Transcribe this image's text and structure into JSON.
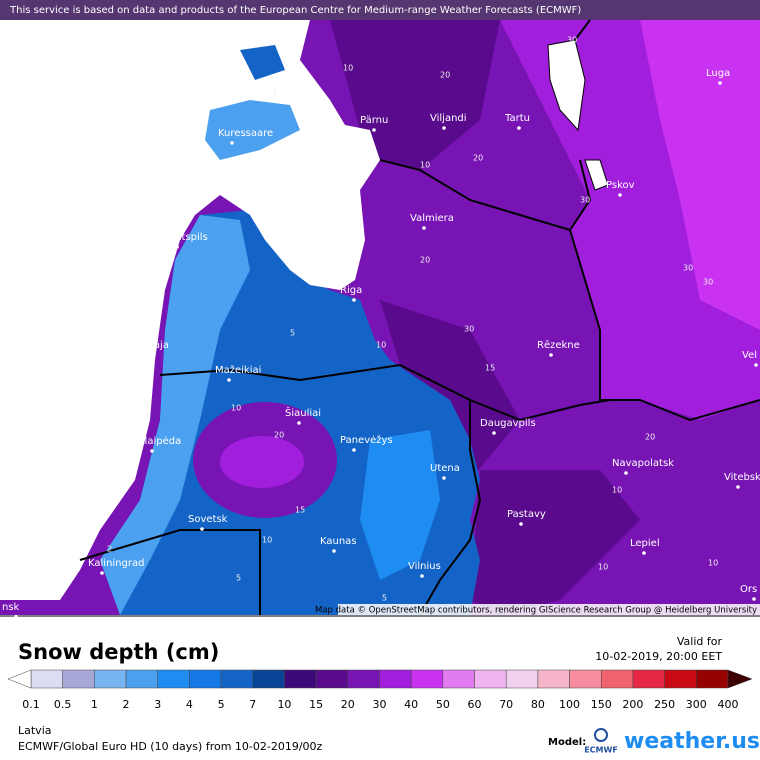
{
  "attribution": "This service is based on data and products of the European Centre for Medium-range Weather Forecasts (ECMWF)",
  "map_credit": "Map data © OpenStreetMap contributors, rendering GIScience Research Group @ Heidelberg University",
  "cities": [
    "Luga",
    "Pärnu",
    "Viljandi",
    "Tartu",
    "Kuressaare",
    "Pskov",
    "Valmiera",
    "Ventspils",
    "Riga",
    "Liepāja",
    "Rēzekne",
    "Mažeikiai",
    "Šiauliai",
    "Klaipėda",
    "Panevėžys",
    "Daugavpils",
    "Navapolatsk",
    "Utena",
    "Vitebsk",
    "Sovetsk",
    "Pastavy",
    "Lepiel",
    "Kaunas",
    "Kaliningrad",
    "Vilnius",
    "Ors",
    "Vel",
    "nsk"
  ],
  "contour_labels": [
    "10",
    "20",
    "30",
    "2",
    "20",
    "30",
    "10",
    "20",
    "30",
    "30",
    "30",
    "10",
    "5",
    "15",
    "20",
    "10",
    "10",
    "20",
    "15",
    "10",
    "2",
    "5",
    "10",
    "10",
    "5"
  ],
  "title": "Snow depth (cm)",
  "valid_label": "Valid for",
  "valid_time": "10-02-2019, 20:00 EET",
  "legend": {
    "levels": [
      0.1,
      0.5,
      1,
      2,
      3,
      4,
      5,
      7,
      10,
      15,
      20,
      30,
      40,
      50,
      60,
      70,
      80,
      100,
      150,
      200,
      250,
      300,
      400
    ],
    "colors": [
      "#dcdcf5",
      "#a8a8d8",
      "#78b4f0",
      "#4ca0f0",
      "#1e8cf0",
      "#1478e6",
      "#1464c8",
      "#0a4496",
      "#3c0a78",
      "#5a0a8c",
      "#7814b4",
      "#a01edc",
      "#c832f0",
      "#e07cf0",
      "#f0b4f0",
      "#f0d2f0",
      "#f5b4c8",
      "#f58ca0",
      "#f0646e",
      "#e62846",
      "#c80a14",
      "#960000"
    ],
    "under_color": "#ffffff",
    "over_color": "#3c0000"
  },
  "region": "Latvia",
  "model_run": "ECMWF/Global Euro HD (10 days) from 10-02-2019/00z",
  "model_label": "Model:",
  "model_name": "ECMWF",
  "brand": "weather.us"
}
